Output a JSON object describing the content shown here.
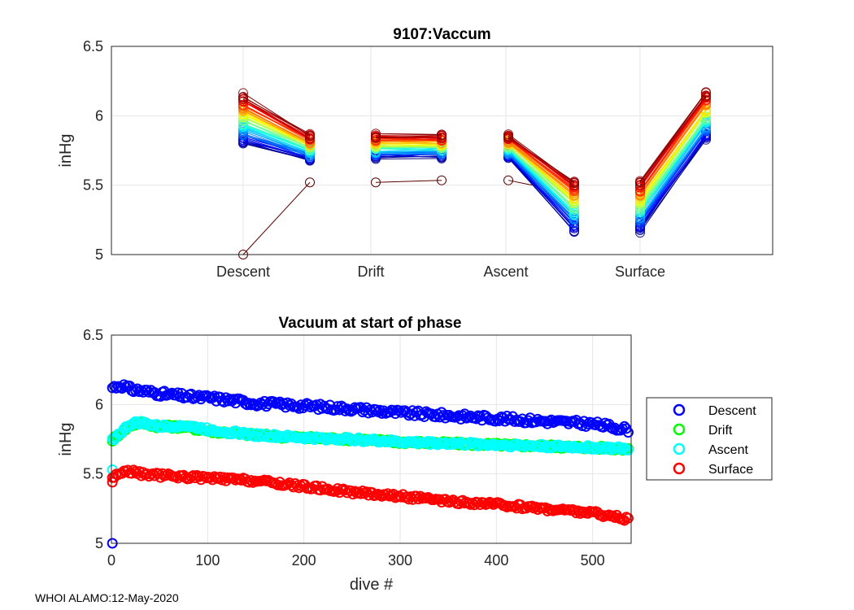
{
  "chart_data": [
    {
      "type": "line",
      "title": "9107:Vaccum",
      "xlabel": "",
      "ylabel": "inHg",
      "categories": [
        "Descent",
        "Drift",
        "Ascent",
        "Surface"
      ],
      "ylim": [
        5,
        6.5
      ],
      "yticks": [
        "5",
        "5.5",
        "6",
        "6.5"
      ],
      "grid": true,
      "colormap": "jet (blue = early dives, red = late dives)",
      "profile_count": 540,
      "envelope_first_dive": {
        "descent_start": 5.8,
        "descent_end": 5.68,
        "drift_start": 5.7,
        "drift_end": 5.7,
        "ascent_start": 5.7,
        "ascent_end": 5.17,
        "surface_start": 5.17,
        "surface_end": 5.83
      },
      "envelope_last_dive": {
        "descent_start": 6.15,
        "descent_end": 5.86,
        "drift_start": 5.86,
        "drift_end": 5.86,
        "ascent_start": 5.86,
        "ascent_end": 5.53,
        "surface_start": 5.53,
        "surface_end": 6.17
      },
      "outlier_segments": [
        {
          "x": [
            0,
            0.55
          ],
          "y": [
            5.0,
            5.52
          ]
        },
        {
          "x": [
            1,
            1.55
          ],
          "y": [
            5.52,
            5.535
          ]
        },
        {
          "x": [
            2,
            2.2
          ],
          "y": [
            5.535,
            5.5
          ]
        }
      ],
      "outlier_color": "#5a0000"
    },
    {
      "type": "scatter",
      "title": "Vacuum at start of phase",
      "xlabel": "dive #",
      "ylabel": "inHg",
      "xlim": [
        0,
        540
      ],
      "ylim": [
        5,
        6.5
      ],
      "xticks": [
        "0",
        "100",
        "200",
        "300",
        "400",
        "500"
      ],
      "yticks": [
        "5",
        "5.5",
        "6",
        "6.5"
      ],
      "grid": true,
      "legend": "outside-right",
      "series": [
        {
          "name": "Descent",
          "color": "#0000ff",
          "points": [
            [
              0,
              6.12
            ],
            [
              10,
              6.14
            ],
            [
              20,
              6.11
            ],
            [
              30,
              6.1
            ],
            [
              40,
              6.09
            ],
            [
              50,
              6.08
            ],
            [
              60,
              6.07
            ],
            [
              75,
              6.06
            ],
            [
              90,
              6.05
            ],
            [
              100,
              6.05
            ],
            [
              125,
              6.03
            ],
            [
              150,
              6.01
            ],
            [
              175,
              6.0
            ],
            [
              200,
              5.99
            ],
            [
              250,
              5.97
            ],
            [
              300,
              5.94
            ],
            [
              350,
              5.92
            ],
            [
              400,
              5.9
            ],
            [
              450,
              5.88
            ],
            [
              500,
              5.86
            ],
            [
              538,
              5.82
            ]
          ],
          "outliers": [
            [
              1,
              5.0
            ]
          ]
        },
        {
          "name": "Drift",
          "color": "#00ff00",
          "points": [
            [
              0,
              5.74
            ],
            [
              10,
              5.8
            ],
            [
              20,
              5.85
            ],
            [
              30,
              5.87
            ],
            [
              50,
              5.84
            ],
            [
              75,
              5.84
            ],
            [
              100,
              5.81
            ],
            [
              150,
              5.78
            ],
            [
              200,
              5.76
            ],
            [
              250,
              5.75
            ],
            [
              300,
              5.73
            ],
            [
              350,
              5.72
            ],
            [
              400,
              5.71
            ],
            [
              450,
              5.7
            ],
            [
              500,
              5.69
            ],
            [
              538,
              5.68
            ]
          ],
          "outliers": []
        },
        {
          "name": "Ascent",
          "color": "#00ffff",
          "points": [
            [
              0,
              5.74
            ],
            [
              10,
              5.8
            ],
            [
              20,
              5.86
            ],
            [
              30,
              5.87
            ],
            [
              50,
              5.84
            ],
            [
              75,
              5.85
            ],
            [
              100,
              5.82
            ],
            [
              150,
              5.78
            ],
            [
              200,
              5.76
            ],
            [
              250,
              5.75
            ],
            [
              300,
              5.73
            ],
            [
              350,
              5.72
            ],
            [
              400,
              5.71
            ],
            [
              450,
              5.7
            ],
            [
              500,
              5.69
            ],
            [
              538,
              5.68
            ]
          ],
          "outliers": [
            [
              1,
              5.53
            ]
          ]
        },
        {
          "name": "Surface",
          "color": "#ff0000",
          "points": [
            [
              0,
              5.47
            ],
            [
              10,
              5.51
            ],
            [
              20,
              5.52
            ],
            [
              30,
              5.5
            ],
            [
              50,
              5.49
            ],
            [
              75,
              5.48
            ],
            [
              100,
              5.47
            ],
            [
              150,
              5.45
            ],
            [
              200,
              5.41
            ],
            [
              250,
              5.37
            ],
            [
              300,
              5.34
            ],
            [
              350,
              5.3
            ],
            [
              400,
              5.28
            ],
            [
              450,
              5.25
            ],
            [
              500,
              5.22
            ],
            [
              538,
              5.17
            ]
          ],
          "outliers": [
            [
              1,
              5.44
            ]
          ]
        }
      ]
    }
  ],
  "footer": "WHOI ALAMO:12-May-2020"
}
